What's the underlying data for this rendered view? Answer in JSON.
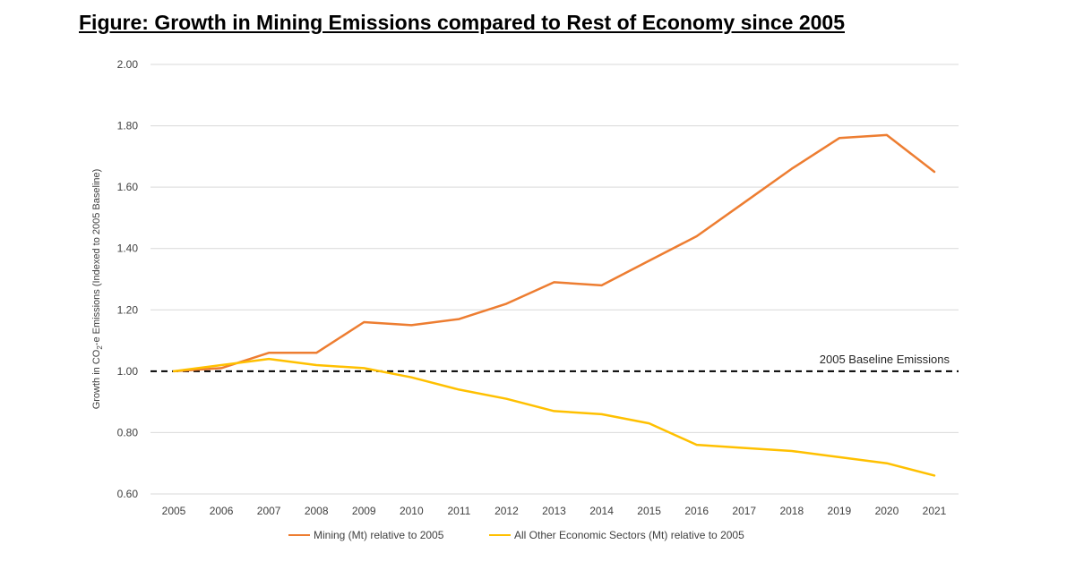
{
  "title": "Figure: Growth in Mining Emissions compared to Rest of Economy since 2005",
  "chart_data": {
    "type": "line",
    "title": "Figure: Growth in Mining Emissions compared to Rest of Economy since 2005",
    "ylabel": "Growth in CO2-e Emissions (Indexed to 2005 Baseline)",
    "ylabel_parts": {
      "pre": "Growth in CO",
      "sub": "2",
      "post": "-e Emissions (Indexed to 2005 Baseline)"
    },
    "xlabel": "",
    "ylim": [
      0.6,
      2.0
    ],
    "yticks": [
      "0.60",
      "0.80",
      "1.00",
      "1.20",
      "1.40",
      "1.60",
      "1.80",
      "2.00"
    ],
    "ytick_values": [
      0.6,
      0.8,
      1.0,
      1.2,
      1.4,
      1.6,
      1.8,
      2.0
    ],
    "x": [
      "2005",
      "2006",
      "2007",
      "2008",
      "2009",
      "2010",
      "2011",
      "2012",
      "2013",
      "2014",
      "2015",
      "2016",
      "2017",
      "2018",
      "2019",
      "2020",
      "2021"
    ],
    "series": [
      {
        "name": "Mining (Mt) relative to 2005",
        "color": "#ED7D31",
        "values": [
          1.0,
          1.01,
          1.06,
          1.06,
          1.16,
          1.15,
          1.17,
          1.22,
          1.29,
          1.28,
          1.36,
          1.44,
          1.55,
          1.66,
          1.76,
          1.77,
          1.65
        ]
      },
      {
        "name": "All Other Economic Sectors (Mt) relative to 2005",
        "color": "#FFC000",
        "values": [
          1.0,
          1.02,
          1.04,
          1.02,
          1.01,
          0.98,
          0.94,
          0.91,
          0.87,
          0.86,
          0.83,
          0.76,
          0.75,
          0.74,
          0.72,
          0.7,
          0.66
        ]
      }
    ],
    "baseline": {
      "value": 1.0,
      "label": "2005 Baseline Emissions",
      "style": "dashed",
      "color": "#000000"
    },
    "grid": true,
    "gridColor": "#D9D9D9",
    "legend": "bottom"
  }
}
